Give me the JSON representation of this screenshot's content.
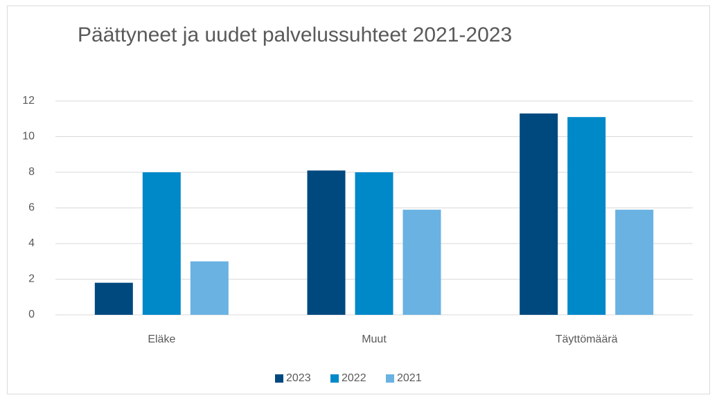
{
  "chart_data": {
    "type": "bar",
    "title": "Päättyneet ja uudet palvelussuhteet 2021-2023",
    "categories": [
      "Eläke",
      "Muut",
      "Täyttömäärä"
    ],
    "series": [
      {
        "name": "2023",
        "color": "#00497f",
        "values": [
          1.8,
          8.1,
          11.3
        ]
      },
      {
        "name": "2022",
        "color": "#0089c9",
        "values": [
          8.0,
          8.0,
          11.1
        ]
      },
      {
        "name": "2021",
        "color": "#69b2e2",
        "values": [
          3.0,
          5.9,
          5.9
        ]
      }
    ],
    "ylim": [
      0,
      12
    ],
    "yticks": [
      0,
      2,
      4,
      6,
      8,
      10,
      12
    ],
    "grid": true,
    "legend": "bottom"
  }
}
